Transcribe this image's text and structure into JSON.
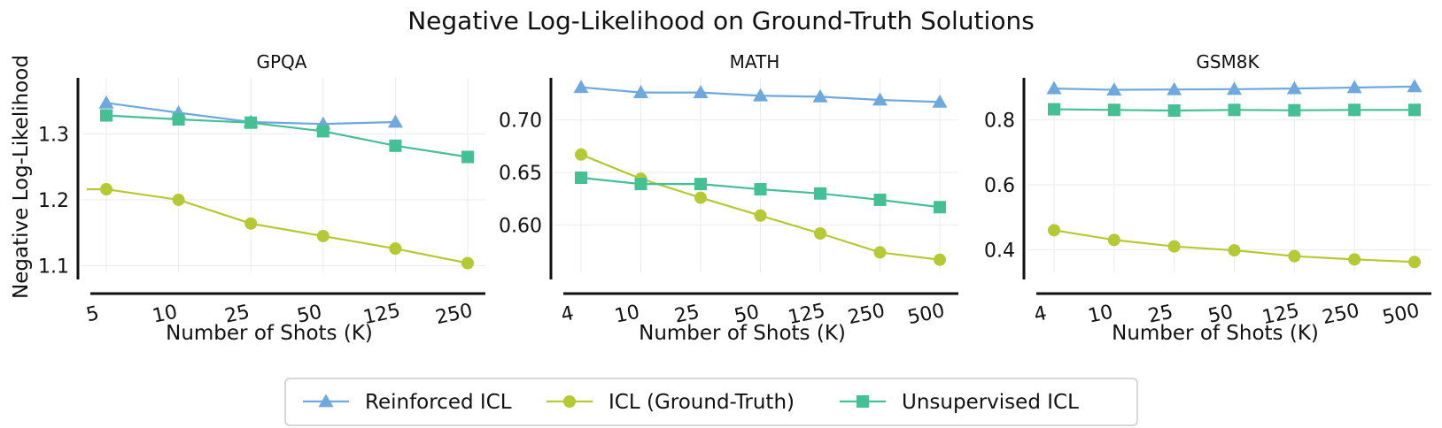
{
  "figure": {
    "title": "Negative Log-Likelihood on Ground-Truth Solutions",
    "ylabel": "Negative Log-Likelihood"
  },
  "colors": {
    "reinforced": "#6fa8dc",
    "icl_gt": "#b5c934",
    "unsupervised": "#45bf94"
  },
  "legend": {
    "items": [
      {
        "label": "Reinforced ICL",
        "marker": "triangle",
        "color": "#6fa8dc"
      },
      {
        "label": "ICL (Ground-Truth)",
        "marker": "circle",
        "color": "#b5c934"
      },
      {
        "label": "Unsupervised ICL",
        "marker": "square",
        "color": "#45bf94"
      }
    ]
  },
  "chart_data": [
    {
      "type": "line",
      "title": "GPQA",
      "xlabel": "Number of Shots (K)",
      "ylabel": "Negative Log-Likelihood",
      "categories": [
        "5",
        "10",
        "25",
        "50",
        "125",
        "250"
      ],
      "yticks": [
        1.1,
        1.2,
        1.3
      ],
      "ylim": [
        1.09,
        1.385
      ],
      "series": [
        {
          "name": "Reinforced ICL",
          "marker": "triangle",
          "color": "#6fa8dc",
          "values": [
            1.347,
            1.332,
            1.318,
            1.315,
            1.318,
            null
          ]
        },
        {
          "name": "ICL (Ground-Truth)",
          "marker": "circle",
          "color": "#b5c934",
          "values": [
            1.216,
            1.2,
            1.164,
            1.145,
            1.126,
            1.104
          ],
          "lead_in": 1.216
        },
        {
          "name": "Unsupervised ICL",
          "marker": "square",
          "color": "#45bf94",
          "values": [
            1.328,
            1.322,
            1.317,
            1.304,
            1.282,
            1.265
          ]
        }
      ]
    },
    {
      "type": "line",
      "title": "MATH",
      "xlabel": "Number of Shots (K)",
      "ylabel": "",
      "categories": [
        "4",
        "10",
        "25",
        "50",
        "125",
        "250",
        "500"
      ],
      "yticks": [
        0.6,
        0.65,
        0.7
      ],
      "ylim": [
        0.555,
        0.74
      ],
      "series": [
        {
          "name": "Reinforced ICL",
          "marker": "triangle",
          "color": "#6fa8dc",
          "values": [
            0.731,
            0.726,
            0.726,
            0.723,
            0.722,
            0.719,
            0.717
          ]
        },
        {
          "name": "ICL (Ground-Truth)",
          "marker": "circle",
          "color": "#b5c934",
          "values": [
            0.667,
            0.644,
            0.626,
            0.609,
            0.592,
            0.574,
            0.567
          ]
        },
        {
          "name": "Unsupervised ICL",
          "marker": "square",
          "color": "#45bf94",
          "values": [
            0.645,
            0.639,
            0.639,
            0.634,
            0.63,
            0.624,
            0.617
          ]
        }
      ]
    },
    {
      "type": "line",
      "title": "GSM8K",
      "xlabel": "Number of Shots (K)",
      "ylabel": "",
      "categories": [
        "4",
        "10",
        "25",
        "50",
        "125",
        "250",
        "500"
      ],
      "yticks": [
        0.4,
        0.6,
        0.8
      ],
      "ylim": [
        0.33,
        0.93
      ],
      "series": [
        {
          "name": "Reinforced ICL",
          "marker": "triangle",
          "color": "#6fa8dc",
          "values": [
            0.897,
            0.893,
            0.894,
            0.895,
            0.897,
            0.9,
            0.903
          ]
        },
        {
          "name": "ICL (Ground-Truth)",
          "marker": "circle",
          "color": "#b5c934",
          "values": [
            0.46,
            0.43,
            0.41,
            0.398,
            0.38,
            0.37,
            0.362
          ]
        },
        {
          "name": "Unsupervised ICL",
          "marker": "square",
          "color": "#45bf94",
          "values": [
            0.833,
            0.831,
            0.829,
            0.831,
            0.83,
            0.831,
            0.831
          ]
        }
      ]
    }
  ]
}
